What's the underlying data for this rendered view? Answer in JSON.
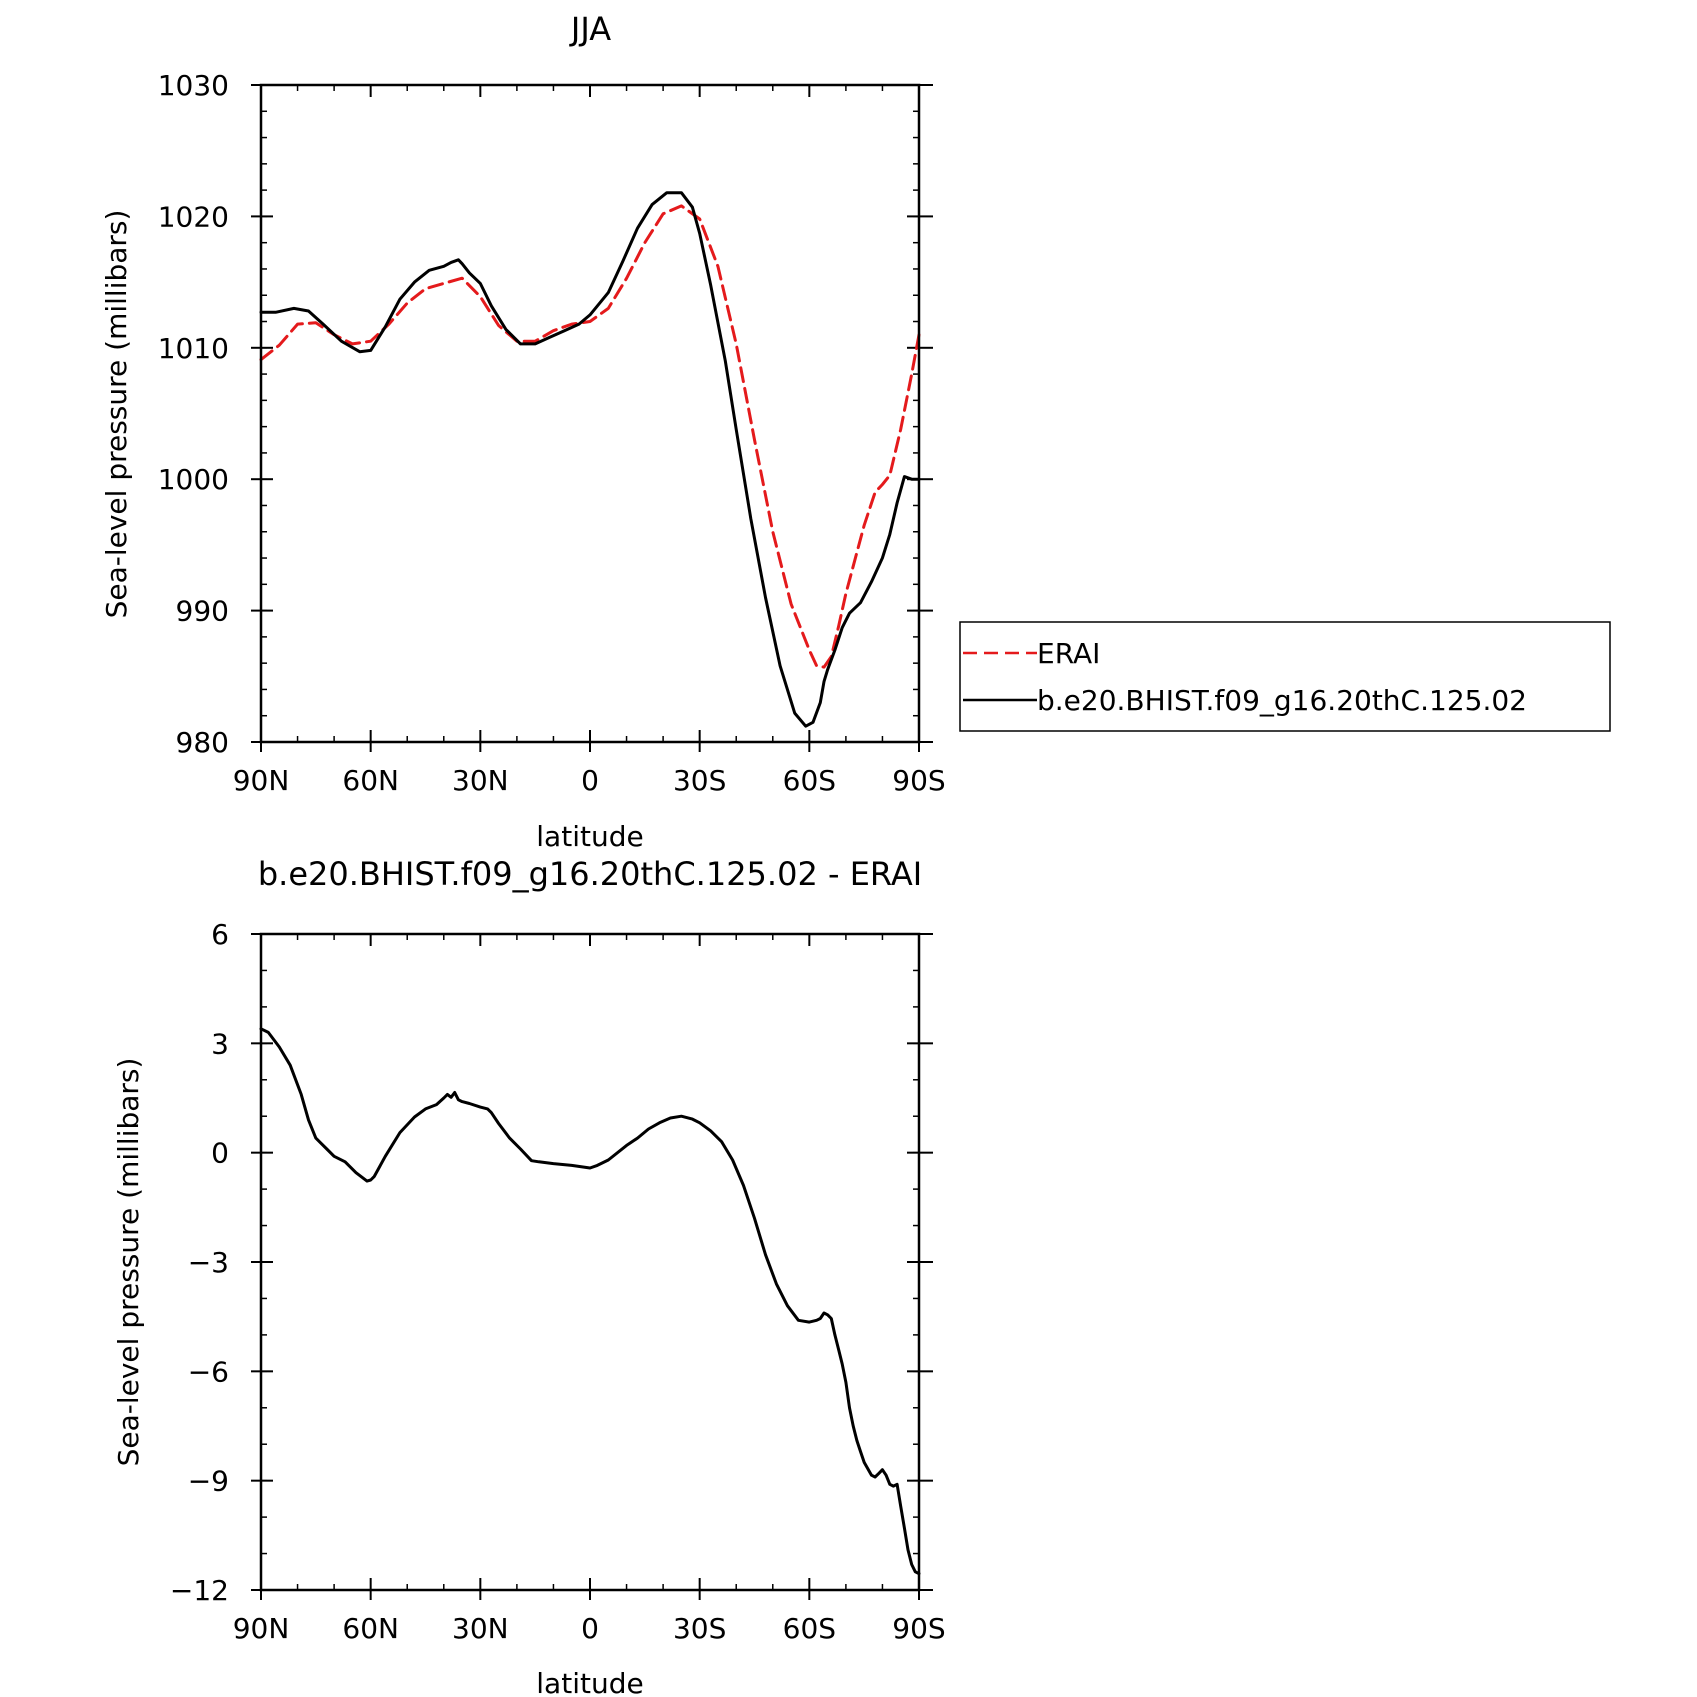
{
  "chart_data": [
    {
      "type": "line",
      "title": "JJA",
      "xlabel": "latitude",
      "ylabel": "Sea-level pressure (millibars)",
      "xlim": [
        90,
        -90
      ],
      "ylim": [
        980,
        1030
      ],
      "x_ticks": [
        90,
        60,
        30,
        0,
        -30,
        -60,
        -90
      ],
      "x_tick_labels": [
        "90N",
        "60N",
        "30N",
        "0",
        "30S",
        "60S",
        "90S"
      ],
      "y_ticks": [
        980,
        990,
        1000,
        1010,
        1020,
        1030
      ],
      "y_tick_labels": [
        "980",
        "990",
        "1000",
        "1010",
        "1020",
        "1030"
      ],
      "legend_position": "right",
      "series": [
        {
          "name": "ERAI",
          "color": "#e41a1c",
          "dash": "dashed",
          "x": [
            90,
            85,
            80,
            75,
            70,
            65,
            60,
            55,
            50,
            45,
            40,
            35,
            30,
            25,
            20,
            15,
            10,
            5,
            0,
            -5,
            -10,
            -15,
            -20,
            -25,
            -30,
            -35,
            -40,
            -45,
            -50,
            -55,
            -60,
            -62,
            -64,
            -66,
            -68,
            -70,
            -75,
            -78,
            -80,
            -82,
            -85,
            -88,
            -90
          ],
          "values": [
            1009.1,
            1010.2,
            1011.8,
            1011.9,
            1011.0,
            1010.3,
            1010.5,
            1011.8,
            1013.4,
            1014.5,
            1014.9,
            1015.3,
            1013.9,
            1011.7,
            1010.5,
            1010.5,
            1011.3,
            1011.8,
            1012.0,
            1013.0,
            1015.3,
            1018.0,
            1020.2,
            1020.8,
            1019.8,
            1016.2,
            1010.3,
            1003.0,
            996.0,
            990.5,
            987.0,
            985.8,
            985.7,
            986.5,
            988.8,
            991.3,
            996.5,
            999.0,
            999.6,
            1000.3,
            1003.8,
            1008.0,
            1011.0
          ]
        },
        {
          "name": "b.e20.BHIST.f09_g16.20thC.125.02",
          "color": "#000000",
          "dash": "solid",
          "x": [
            90,
            86,
            81,
            77,
            73,
            68,
            63,
            60,
            56,
            52,
            48,
            44,
            40,
            38,
            36,
            35,
            33,
            30,
            27,
            23,
            19,
            15,
            11,
            7,
            3,
            0,
            -5,
            -9,
            -13,
            -17,
            -21,
            -25,
            -28,
            -30,
            -33,
            -37,
            -40,
            -44,
            -48,
            -52,
            -56,
            -59,
            -61,
            -63,
            -64,
            -65,
            -67,
            -69,
            -71,
            -74,
            -77,
            -80,
            -82,
            -84,
            -86,
            -88,
            -90
          ],
          "values": [
            1012.7,
            1012.7,
            1013.0,
            1012.8,
            1011.8,
            1010.5,
            1009.7,
            1009.8,
            1011.6,
            1013.7,
            1015.0,
            1015.9,
            1016.2,
            1016.5,
            1016.7,
            1016.4,
            1015.7,
            1014.9,
            1013.2,
            1011.4,
            1010.3,
            1010.3,
            1010.8,
            1011.3,
            1011.8,
            1012.5,
            1014.2,
            1016.6,
            1019.1,
            1020.9,
            1021.8,
            1021.8,
            1020.7,
            1018.7,
            1014.8,
            1009.0,
            1003.8,
            997.0,
            991.0,
            985.8,
            982.2,
            981.2,
            981.5,
            983.0,
            984.6,
            985.5,
            987.0,
            988.7,
            989.8,
            990.6,
            992.2,
            994.0,
            995.8,
            998.2,
            1000.2,
            1000.0,
            1000.0
          ]
        }
      ]
    },
    {
      "type": "line",
      "title": "b.e20.BHIST.f09_g16.20thC.125.02 - ERAI",
      "xlabel": "latitude",
      "ylabel": "Sea-level pressure (millibars)",
      "xlim": [
        90,
        -90
      ],
      "ylim": [
        -12,
        6
      ],
      "x_ticks": [
        90,
        60,
        30,
        0,
        -30,
        -60,
        -90
      ],
      "x_tick_labels": [
        "90N",
        "60N",
        "30N",
        "0",
        "30S",
        "60S",
        "90S"
      ],
      "y_ticks": [
        -12,
        -9,
        -6,
        -3,
        0,
        3,
        6
      ],
      "y_tick_labels": [
        "−12",
        "−9",
        "−6",
        "−3",
        "0",
        "3",
        "6"
      ],
      "series": [
        {
          "color": "#000000",
          "dash": "solid",
          "x": [
            90,
            88,
            85,
            82,
            79,
            77,
            75,
            72,
            70,
            67,
            64,
            61,
            60,
            59,
            56,
            52,
            48,
            45,
            42,
            40,
            39,
            38,
            37,
            36,
            35,
            33,
            30,
            28,
            27,
            25,
            22,
            19,
            16,
            14,
            10,
            5,
            0,
            -2,
            -5,
            -10,
            -13,
            -16,
            -19,
            -22,
            -25,
            -28,
            -30,
            -33,
            -36,
            -39,
            -42,
            -45,
            -48,
            -51,
            -54,
            -57,
            -60,
            -62,
            -63,
            -64,
            -65,
            -66,
            -67,
            -68,
            -69,
            -70,
            -71,
            -72,
            -73,
            -74,
            -75,
            -77,
            -78,
            -79,
            -80,
            -81,
            -82,
            -83,
            -84,
            -85,
            -86,
            -87,
            -88,
            -89,
            -90
          ],
          "values": [
            3.4,
            3.3,
            2.9,
            2.4,
            1.6,
            0.9,
            0.4,
            0.1,
            -0.1,
            -0.25,
            -0.55,
            -0.78,
            -0.75,
            -0.65,
            -0.1,
            0.55,
            0.98,
            1.2,
            1.32,
            1.5,
            1.6,
            1.52,
            1.65,
            1.45,
            1.4,
            1.35,
            1.25,
            1.2,
            1.1,
            0.8,
            0.4,
            0.1,
            -0.22,
            -0.25,
            -0.3,
            -0.35,
            -0.42,
            -0.35,
            -0.2,
            0.2,
            0.4,
            0.65,
            0.82,
            0.95,
            1.0,
            0.92,
            0.82,
            0.6,
            0.3,
            -0.2,
            -0.9,
            -1.8,
            -2.8,
            -3.6,
            -4.2,
            -4.6,
            -4.65,
            -4.6,
            -4.55,
            -4.4,
            -4.45,
            -4.55,
            -5.0,
            -5.4,
            -5.8,
            -6.3,
            -7.0,
            -7.5,
            -7.9,
            -8.2,
            -8.5,
            -8.85,
            -8.9,
            -8.8,
            -8.7,
            -8.85,
            -9.1,
            -9.15,
            -9.1,
            -9.7,
            -10.3,
            -10.9,
            -11.3,
            -11.5,
            -11.55
          ]
        }
      ]
    }
  ],
  "legend": {
    "entries": [
      {
        "label": "ERAI",
        "color": "#e41a1c",
        "dash": "dashed"
      },
      {
        "label": "b.e20.BHIST.f09_g16.20thC.125.02",
        "color": "#000000",
        "dash": "solid"
      }
    ]
  }
}
